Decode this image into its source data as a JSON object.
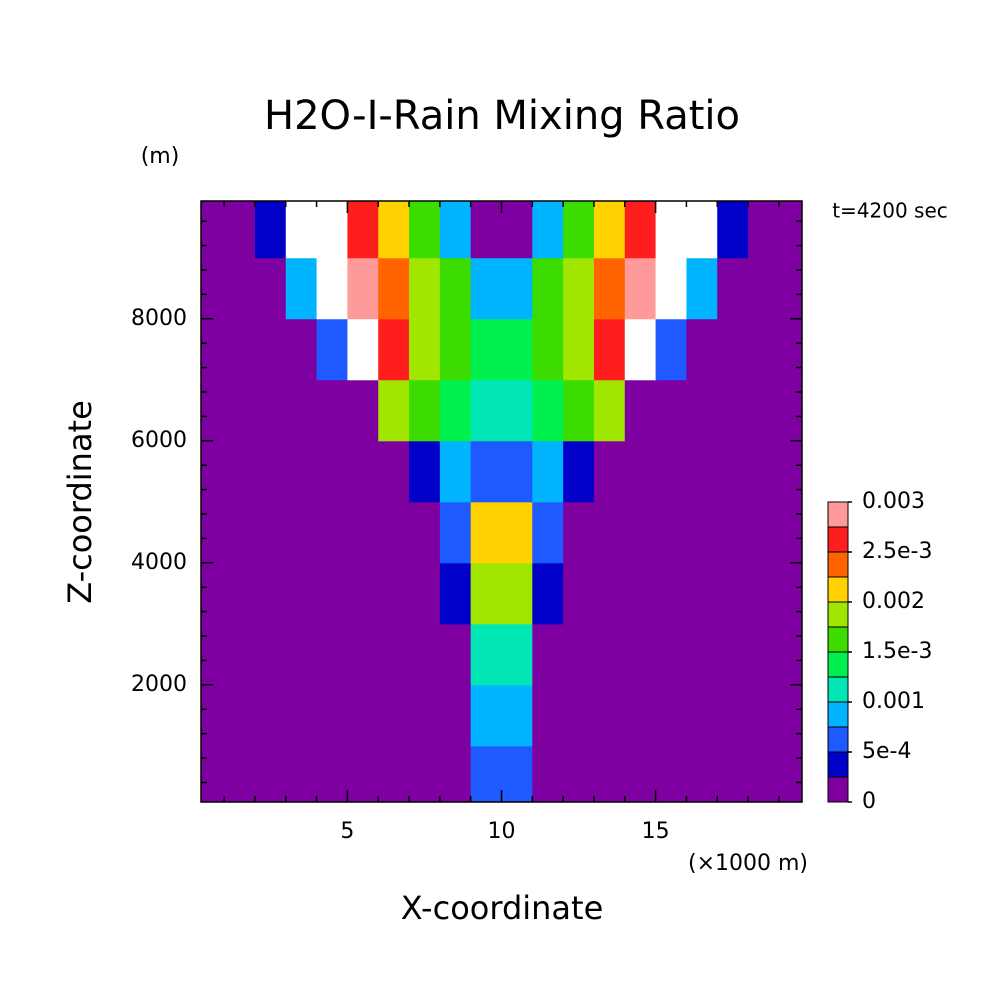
{
  "chart_data": {
    "type": "contour",
    "title": "H2O-I-Rain Mixing Ratio",
    "y_unit": "(m)",
    "time_label": "t=4200 sec",
    "x_unit": "(×1000 m)",
    "x_label": "X-coordinate",
    "y_label": "Z-coordinate",
    "background_color": "#7f00a0",
    "above_color": "#ffffff",
    "xlim": [
      0.25,
      19.75
    ],
    "ylim": [
      80,
      9930
    ],
    "xticks": [
      5,
      10,
      15
    ],
    "yticks": [
      2000,
      4000,
      6000,
      8000
    ],
    "xminorticks": [
      1,
      2,
      3,
      4,
      6,
      7,
      8,
      9,
      11,
      12,
      13,
      14,
      16,
      17,
      18,
      19
    ],
    "yminorticks": [
      400,
      800,
      1200,
      1600,
      2400,
      2800,
      3200,
      3600,
      4400,
      4800,
      5200,
      5600,
      6400,
      6800,
      7200,
      7600,
      8400,
      8800,
      9200,
      9600
    ],
    "x": [
      0.5,
      1.5,
      2.5,
      3.5,
      4.5,
      5.5,
      6.5,
      7.5,
      8.5,
      9.5,
      10.5,
      11.5,
      12.5,
      13.5,
      14.5,
      15.5,
      16.5,
      17.5,
      18.5,
      19.5
    ],
    "y": [
      500,
      1500,
      2500,
      3500,
      4500,
      5500,
      6500,
      7500,
      8500,
      9500
    ],
    "z": [
      [
        0,
        0,
        0,
        0,
        0,
        0,
        0,
        0,
        0,
        0.0006,
        0.0006,
        0,
        0,
        0,
        0,
        0,
        0,
        0,
        0,
        0
      ],
      [
        0,
        0,
        0,
        0,
        0,
        0,
        0,
        0,
        0,
        0.0008,
        0.0008,
        0,
        0,
        0,
        0,
        0,
        0,
        0,
        0,
        0
      ],
      [
        0,
        0,
        0,
        0,
        0,
        0,
        0,
        0,
        0.0001,
        0.0011,
        0.0011,
        0.0001,
        0,
        0,
        0,
        0,
        0,
        0,
        0,
        0
      ],
      [
        0,
        0,
        0,
        0,
        0,
        0,
        0,
        0,
        0.0004,
        0.0018,
        0.0018,
        0.0004,
        0,
        0,
        0,
        0,
        0,
        0,
        0,
        0
      ],
      [
        0,
        0,
        0,
        0,
        0,
        0,
        0,
        0,
        0.0007,
        0.0022,
        0.0022,
        0.0007,
        0,
        0,
        0,
        0,
        0,
        0,
        0,
        0
      ],
      [
        0,
        0,
        0,
        0,
        0,
        0,
        0,
        0.0003,
        0.0009,
        0.0006,
        0.0006,
        0.0009,
        0.0003,
        0,
        0,
        0,
        0,
        0,
        0,
        0
      ],
      [
        0,
        0,
        0,
        0,
        0,
        0.0002,
        0.0018,
        0.0016,
        0.0013,
        0.0012,
        0.0012,
        0.0013,
        0.0016,
        0.0018,
        0.0002,
        0,
        0,
        0,
        0,
        0
      ],
      [
        0,
        0,
        0,
        0,
        0.0006,
        0.0032,
        0.0026,
        0.0019,
        0.0016,
        0.0013,
        0.0013,
        0.0016,
        0.0019,
        0.0026,
        0.0032,
        0.0006,
        0,
        0,
        0,
        0
      ],
      [
        0,
        0,
        0,
        0.0008,
        0.0035,
        0.0028,
        0.0024,
        0.0019,
        0.0015,
        0.0008,
        0.0008,
        0.0015,
        0.0019,
        0.0024,
        0.0028,
        0.0035,
        0.0008,
        0,
        0,
        0
      ],
      [
        0,
        0,
        0.0004,
        0.0035,
        0.0033,
        0.0027,
        0.0022,
        0.0017,
        0.0009,
        0.0001,
        0.0001,
        0.0009,
        0.0017,
        0.0022,
        0.0027,
        0.0033,
        0.0035,
        0.0004,
        0,
        0
      ]
    ],
    "levels": [
      0,
      0.00025,
      0.0005,
      0.00075,
      0.001,
      0.00125,
      0.0015,
      0.00175,
      0.002,
      0.00225,
      0.0025,
      0.00275,
      0.003
    ],
    "colors": [
      "#7f00a0",
      "#0000c8",
      "#1e5aff",
      "#00b4ff",
      "#00e6b4",
      "#00f050",
      "#3cdc00",
      "#a0e600",
      "#ffd200",
      "#ff6400",
      "#ff1e1e",
      "#ff9a9a"
    ],
    "colorbar_ticks": [
      0,
      {
        "value": 0.0005,
        "label": "5e-4"
      },
      0.001,
      {
        "value": 0.0015,
        "label": "1.5e-3"
      },
      0.002,
      {
        "value": 0.0025,
        "label": "2.5e-3"
      },
      0.003
    ]
  }
}
